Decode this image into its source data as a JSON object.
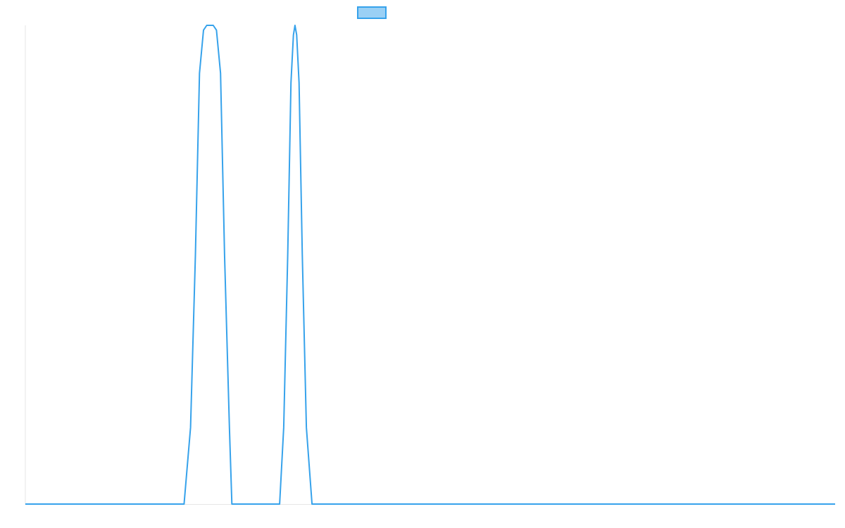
{
  "chart_data": {
    "type": "line",
    "title": "",
    "xlabel": "",
    "ylabel": "",
    "grid": false,
    "legend": {
      "placement": "top-center",
      "entries": [
        {
          "label": "",
          "fill": "#9ad0f5",
          "stroke": "#36a2eb"
        }
      ]
    },
    "xlim": [
      0,
      100
    ],
    "ylim": [
      0,
      1
    ],
    "series": [
      {
        "color": "#36a2eb",
        "points": [
          [
            0,
            0
          ],
          [
            19.6,
            0
          ],
          [
            20.4,
            0.16
          ],
          [
            21.0,
            0.52
          ],
          [
            21.5,
            0.9
          ],
          [
            22.0,
            0.99
          ],
          [
            22.4,
            1.0
          ],
          [
            23.2,
            1.0
          ],
          [
            23.6,
            0.99
          ],
          [
            24.1,
            0.9
          ],
          [
            24.6,
            0.52
          ],
          [
            25.2,
            0.16
          ],
          [
            25.5,
            0
          ],
          [
            31.4,
            0
          ],
          [
            31.9,
            0.16
          ],
          [
            32.4,
            0.52
          ],
          [
            32.8,
            0.88
          ],
          [
            33.1,
            0.98
          ],
          [
            33.3,
            1.0
          ],
          [
            33.5,
            0.98
          ],
          [
            33.8,
            0.88
          ],
          [
            34.2,
            0.52
          ],
          [
            34.7,
            0.16
          ],
          [
            35.4,
            0
          ],
          [
            100,
            0
          ]
        ]
      }
    ]
  }
}
